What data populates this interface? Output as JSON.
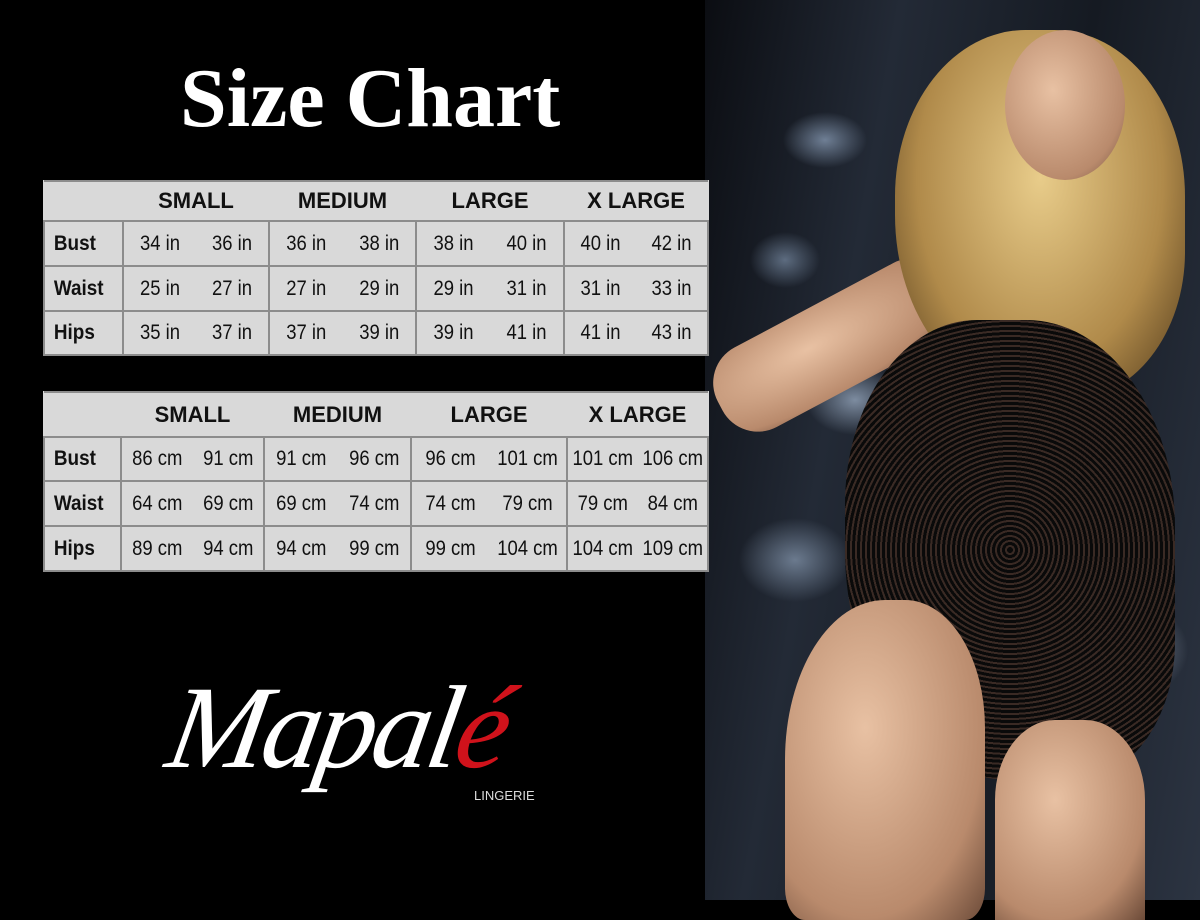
{
  "title": "Size Chart",
  "sizes": [
    "SMALL",
    "MEDIUM",
    "LARGE",
    "X LARGE"
  ],
  "tables": [
    {
      "rows": [
        {
          "label": "Bust",
          "values": [
            "34 in",
            "36 in",
            "36 in",
            "38 in",
            "38 in",
            "40 in",
            "40 in",
            "42 in"
          ]
        },
        {
          "label": "Waist",
          "values": [
            "25 in",
            "27 in",
            "27 in",
            "29 in",
            "29 in",
            "31 in",
            "31 in",
            "33 in"
          ]
        },
        {
          "label": "Hips",
          "values": [
            "35 in",
            "37 in",
            "37 in",
            "39 in",
            "39 in",
            "41 in",
            "41 in",
            "43 in"
          ]
        }
      ]
    },
    {
      "rows": [
        {
          "label": "Bust",
          "values": [
            "86 cm",
            "91 cm",
            "91 cm",
            "96 cm",
            "96 cm",
            "101 cm",
            "101 cm",
            "106 cm"
          ]
        },
        {
          "label": "Waist",
          "values": [
            "64 cm",
            "69 cm",
            "69 cm",
            "74 cm",
            "74 cm",
            "79 cm",
            "79 cm",
            "84 cm"
          ]
        },
        {
          "label": "Hips",
          "values": [
            "89 cm",
            "94 cm",
            "94 cm",
            "99 cm",
            "99 cm",
            "104 cm",
            "104 cm",
            "109 cm"
          ]
        }
      ]
    }
  ],
  "logo": {
    "main": "Mapal",
    "accent": "é",
    "sub": "LINGERIE"
  },
  "colors": {
    "background": "#000000",
    "table": "#d9d9d9",
    "accent": "#d0121b"
  }
}
